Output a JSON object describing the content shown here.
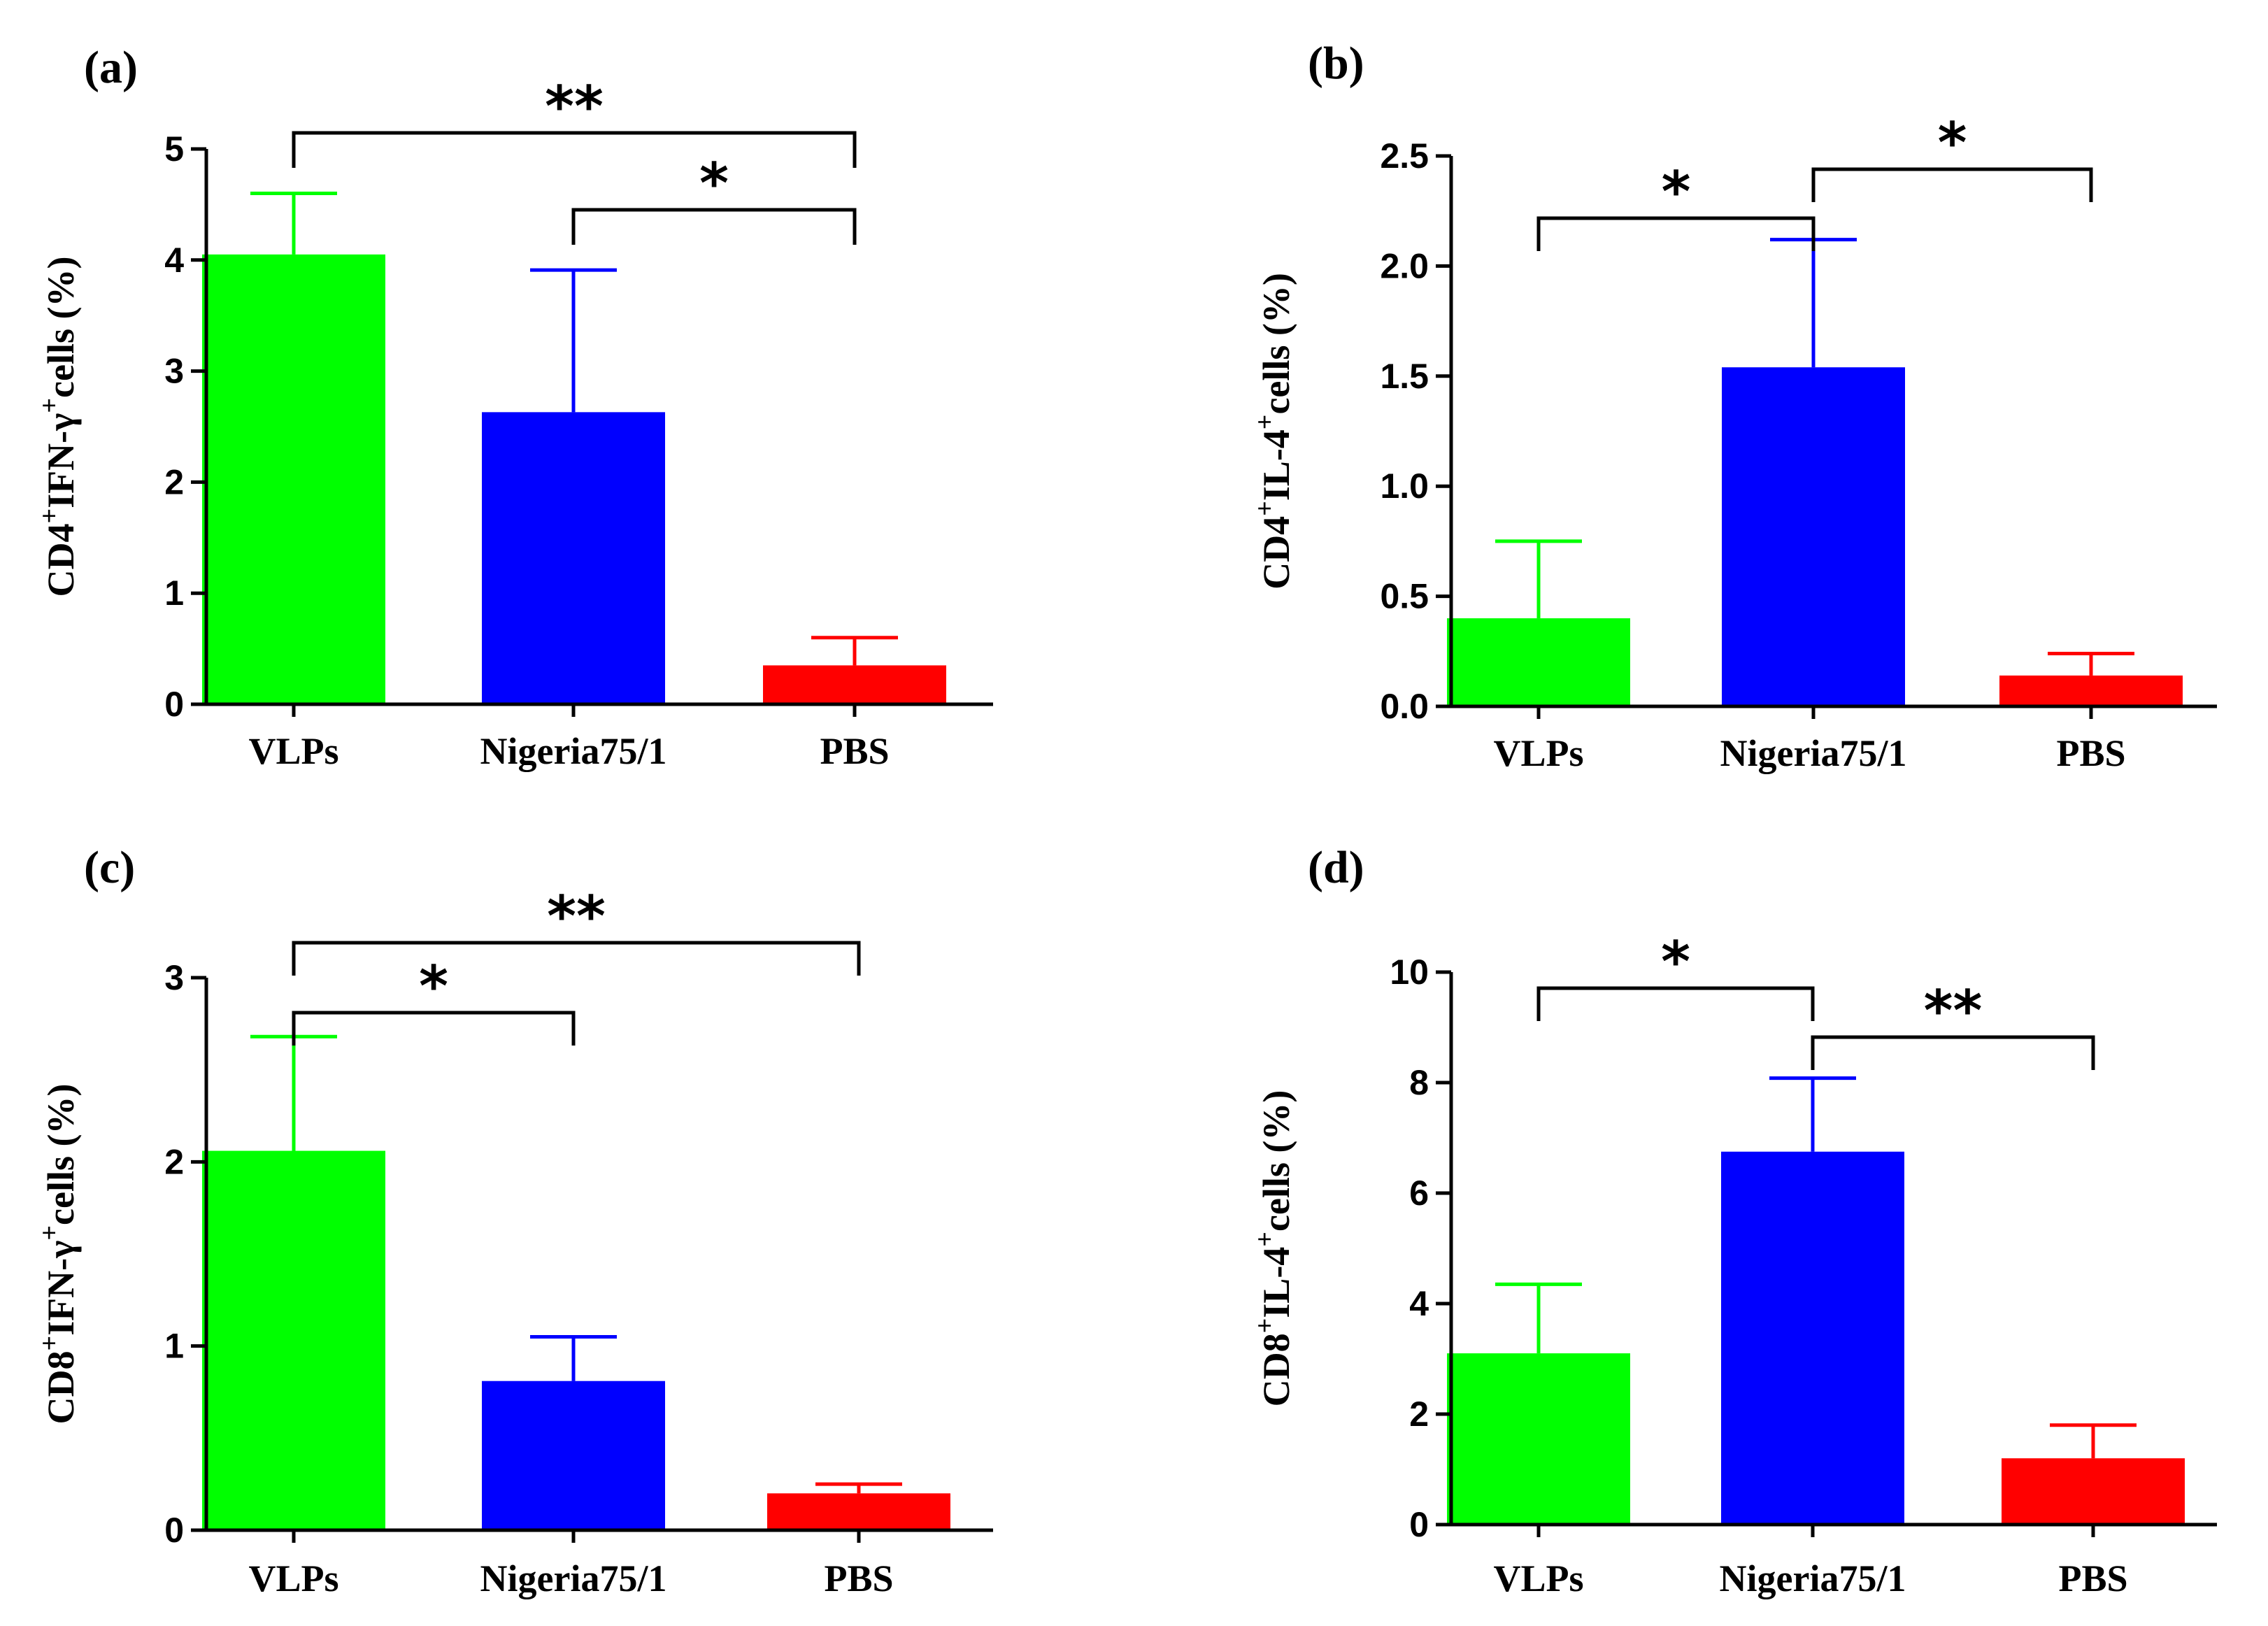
{
  "colors": {
    "VLPs": "#00ff00",
    "Nigeria75/1": "#0000ff",
    "PBS": "#ff0000"
  },
  "chart_data": [
    {
      "panel": "(a)",
      "type": "bar",
      "ylabel_parts": [
        "CD4",
        "+",
        "IFN-γ",
        "+",
        "cells (%)"
      ],
      "categories": [
        "VLPs",
        "Nigeria75/1",
        "PBS"
      ],
      "values": [
        4.05,
        2.63,
        0.35
      ],
      "errors": [
        0.55,
        1.28,
        0.25
      ],
      "ylim": [
        0,
        5
      ],
      "yticks": [
        0,
        1,
        2,
        3,
        4,
        5
      ],
      "ytick_labels": [
        "0",
        "1",
        "2",
        "3",
        "4",
        "5"
      ],
      "significance": [
        {
          "from": "VLPs",
          "to": "PBS",
          "label": "**",
          "level": 1
        },
        {
          "from": "Nigeria75/1",
          "to": "PBS",
          "label": "*",
          "level": 0
        }
      ]
    },
    {
      "panel": "(b)",
      "type": "bar",
      "ylabel_parts": [
        "CD4",
        "+",
        "IL-4",
        "+",
        "cells (%)"
      ],
      "categories": [
        "VLPs",
        "Nigeria75/1",
        "PBS"
      ],
      "values": [
        0.4,
        1.54,
        0.14
      ],
      "errors": [
        0.35,
        0.58,
        0.1
      ],
      "ylim": [
        0,
        2.5
      ],
      "yticks": [
        0,
        0.5,
        1,
        1.5,
        2,
        2.5
      ],
      "ytick_labels": [
        "0.0",
        "0.5",
        "1.0",
        "1.5",
        "2.0",
        "2.5"
      ],
      "significance": [
        {
          "from": "VLPs",
          "to": "Nigeria75/1",
          "label": "*",
          "level": 0
        },
        {
          "from": "Nigeria75/1",
          "to": "PBS",
          "label": "*",
          "level": 1
        }
      ]
    },
    {
      "panel": "(c)",
      "type": "bar",
      "ylabel_parts": [
        "CD8",
        "+",
        "IFN-γ",
        "+",
        "cells (%)"
      ],
      "categories": [
        "VLPs",
        "Nigeria75/1",
        "PBS"
      ],
      "values": [
        2.06,
        0.81,
        0.2
      ],
      "errors": [
        0.62,
        0.24,
        0.05
      ],
      "ylim": [
        0,
        3
      ],
      "yticks": [
        0,
        1,
        2,
        3
      ],
      "ytick_labels": [
        "0",
        "1",
        "2",
        "3"
      ],
      "significance": [
        {
          "from": "VLPs",
          "to": "Nigeria75/1",
          "label": "*",
          "level": 0
        },
        {
          "from": "VLPs",
          "to": "PBS",
          "label": "**",
          "level": 1
        }
      ]
    },
    {
      "panel": "(d)",
      "type": "bar",
      "ylabel_parts": [
        "CD8",
        "+",
        "IL-4",
        "+",
        "cells (%)"
      ],
      "categories": [
        "VLPs",
        "Nigeria75/1",
        "PBS"
      ],
      "values": [
        3.1,
        6.75,
        1.2
      ],
      "errors": [
        1.25,
        1.33,
        0.6
      ],
      "ylim": [
        0,
        10
      ],
      "yticks": [
        0,
        2,
        4,
        6,
        8,
        10
      ],
      "ytick_labels": [
        "0",
        "2",
        "4",
        "6",
        "8",
        "10"
      ],
      "significance": [
        {
          "from": "VLPs",
          "to": "Nigeria75/1",
          "label": "*",
          "level": 1
        },
        {
          "from": "Nigeria75/1",
          "to": "PBS",
          "label": "**",
          "level": 0
        }
      ]
    }
  ]
}
